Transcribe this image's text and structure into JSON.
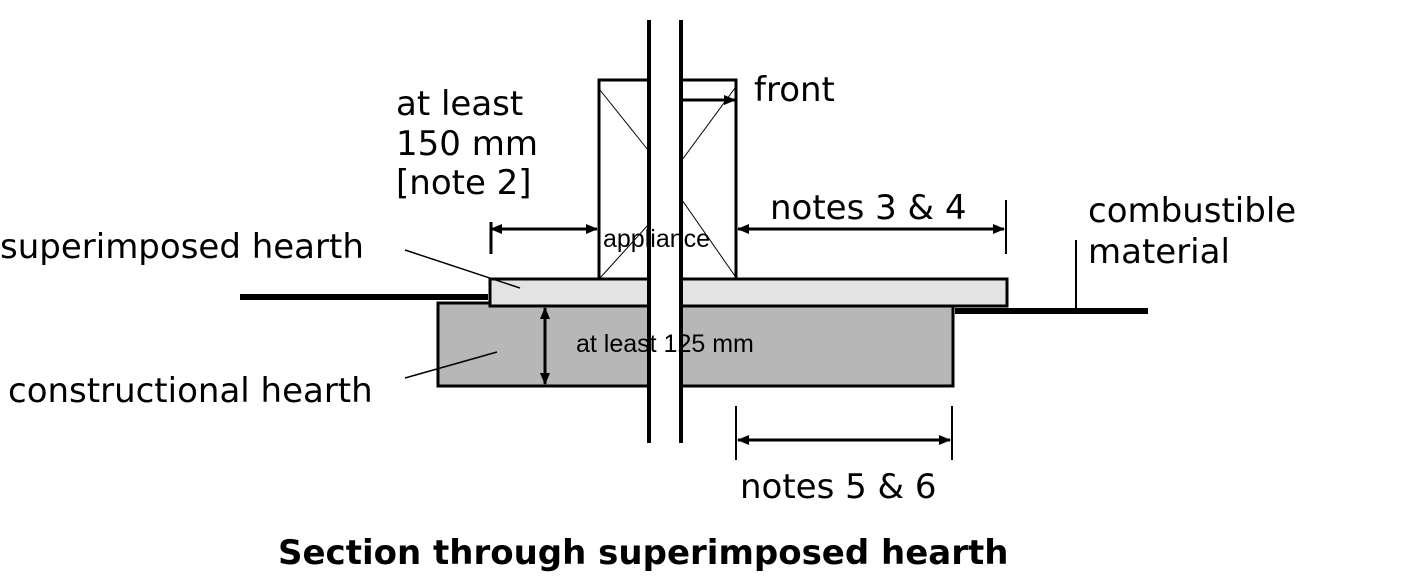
{
  "title": "Section through superimposed hearth",
  "labels": {
    "front": "front",
    "at_least_150_line1": "at least",
    "at_least_150_line2": "150 mm",
    "at_least_150_line3": "[note 2]",
    "notes_3_4": "notes 3 & 4",
    "combustible_line1": "combustible",
    "combustible_line2": "material",
    "superimposed_hearth": "superimposed hearth",
    "appliance": "appliance",
    "at_least_125": "at least 125 mm",
    "constructional_hearth": "constructional hearth",
    "notes_5_6": "notes 5 & 6"
  },
  "colors": {
    "line": "#000000",
    "superimposed_fill": "#e3e3e3",
    "constructional_fill": "#b7b7b7",
    "background": "#ffffff"
  }
}
